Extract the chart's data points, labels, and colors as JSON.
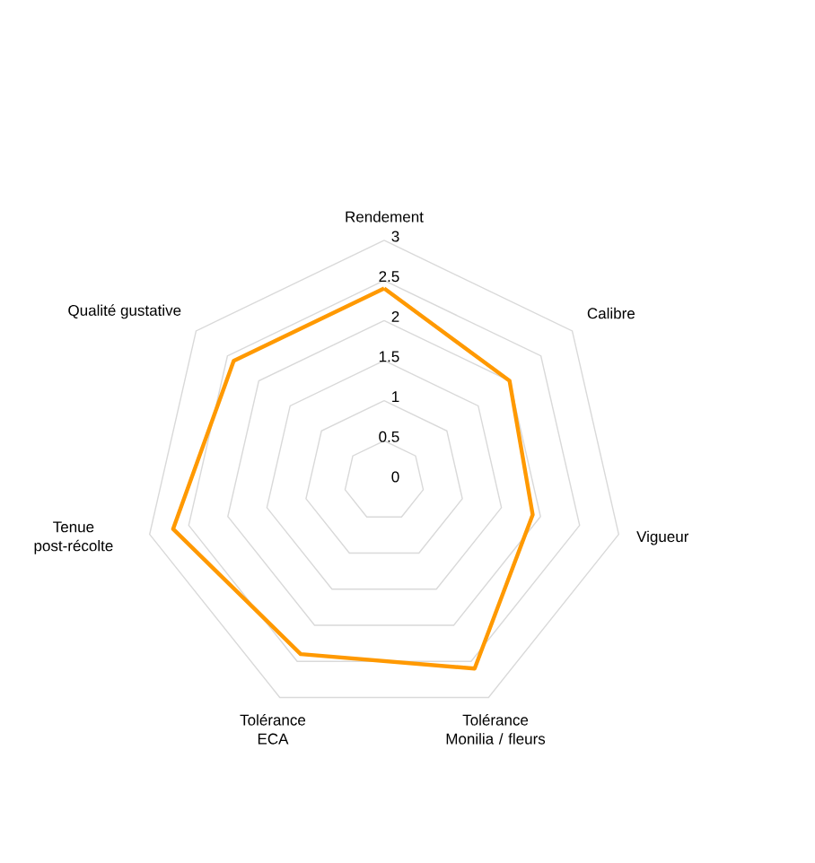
{
  "chart_data": {
    "type": "radar",
    "categories": [
      "Rendement",
      "Calibre",
      "Vigueur",
      "Tolérance Monilia / fleurs",
      "Tolérance ECA",
      "Tenue post-récolte",
      "Qualité gustative"
    ],
    "series": [
      {
        "color": "#ff9900",
        "values": [
          2.4,
          2.0,
          1.9,
          2.6,
          2.4,
          2.7,
          2.4
        ]
      }
    ],
    "ylim": [
      0,
      3
    ],
    "yticks": [
      0,
      0.5,
      1,
      1.5,
      2,
      2.5,
      3
    ],
    "grid": true
  }
}
